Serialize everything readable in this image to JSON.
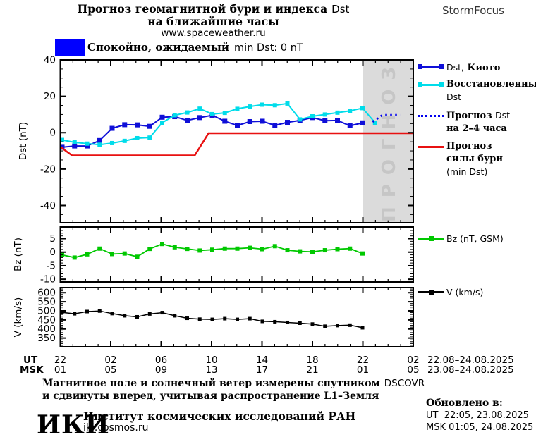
{
  "header": {
    "title_line1_ru": "Прогноз геомагнитной бури и индекса",
    "title_line1_lat": "Dst",
    "title_line2": "на ближайшие часы",
    "url": "www.spaceweather.ru",
    "brand": "StormFocus"
  },
  "status": {
    "label_ru": "Спокойно, ожидаемый",
    "label_lat": "min Dst: 0 nT",
    "box_color": "#0000ff"
  },
  "forecast_band": {
    "label": "ПРОГНОЗ",
    "fill": "#dbdbdb",
    "text_color": "#c6c6c6"
  },
  "xaxis": {
    "ut_label": "UT",
    "msk_label": "MSK",
    "ut": [
      "22",
      "02",
      "06",
      "10",
      "14",
      "18",
      "22",
      "02"
    ],
    "msk": [
      "01",
      "05",
      "09",
      "13",
      "17",
      "21",
      "01",
      "05"
    ],
    "ut_range": "22.08–24.08.2025",
    "msk_range": "23.08–24.08.2025"
  },
  "legend": {
    "dst_kyoto_lat": "Dst,",
    "dst_kyoto_ru": "Киото",
    "restored_line1": "Восстановленный",
    "restored_line2": "Dst",
    "forecast_line1_ru": "Прогноз",
    "forecast_line1_lat": "Dst",
    "forecast_line2": "на 2–4 часа",
    "storm_line1": "Прогноз",
    "storm_line2": "силы бури",
    "storm_line3": "(min Dst)",
    "bz": "Bz (nT, GSM)",
    "v": "V (km/s)"
  },
  "footer": {
    "caption_line1_ru": "Магнитное поле и солнечный ветер измерены спутником",
    "caption_line1_lat": "DSCOVR",
    "caption_line2": "и сдвинуты вперед, учитывая распространение L1–Земля",
    "logo": "ИКИ",
    "institute": "Институт космических исследований РАН",
    "site": "iki.cosmos.ru",
    "updated_label": "Обновлено в:",
    "updated_ut": "UT  22:05, 23.08.2025",
    "updated_msk": "MSK 01:05, 24.08.2025"
  },
  "chart_data": [
    {
      "type": "line",
      "panel": "dst",
      "ylabel": "Dst (nT)",
      "yticks": [
        40,
        20,
        0,
        -20,
        -40
      ],
      "ylim": [
        -50,
        40
      ],
      "x_hours_span": 28,
      "x_note": "hourly points, x axis 22:00 UT 22.08 to 02:00 UT 24.08; shaded last 4 h = forecast",
      "series": [
        {
          "name": "Dst, Киото",
          "color": "#0f0fd8",
          "width": 2,
          "marker": true,
          "msize": 7,
          "values": [
            -8,
            -7.3,
            -7.3,
            -4.3,
            2.4,
            4.4,
            4.3,
            3.5,
            8.5,
            8.8,
            6.7,
            8.3,
            9.6,
            6.3,
            4,
            6.1,
            6.3,
            4,
            5.7,
            6.7,
            8.3,
            6.6,
            6.7,
            3.8,
            5.4
          ]
        },
        {
          "name": "Восстановленный Dst",
          "color": "#00dcea",
          "width": 2,
          "marker": true,
          "msize": 6,
          "values": [
            -4,
            -5.3,
            -6,
            -6.6,
            -5.7,
            -4.5,
            -3,
            -2.7,
            5.5,
            9.6,
            11.1,
            13.2,
            10.2,
            10.9,
            13.1,
            14.4,
            15.4,
            15.1,
            16,
            7.3,
            9,
            10,
            11,
            12,
            13.5,
            5.5
          ]
        },
        {
          "name": "Прогноз Dst на 2–4 часа",
          "color": "#0000ee",
          "width": 3,
          "dash": "2.5 4.5",
          "points": [
            [
              24.8,
              6
            ],
            [
              25.6,
              9.7
            ],
            [
              27,
              9.7
            ]
          ]
        },
        {
          "name": "Прогноз силы бури (min Dst)",
          "color": "#e81111",
          "width": 2.5,
          "points": [
            [
              -0.14,
              -7.8
            ],
            [
              0.8,
              -12.5
            ],
            [
              10.6,
              -12.5
            ],
            [
              11.7,
              -0.3
            ],
            [
              28.05,
              -0.3
            ]
          ]
        }
      ]
    },
    {
      "type": "line",
      "panel": "bz",
      "ylabel": "Bz (nT)",
      "yticks": [
        5,
        0,
        -5,
        -10
      ],
      "ylim": [
        -11,
        9
      ],
      "series": [
        {
          "name": "Bz (nT, GSM)",
          "color": "#00c800",
          "width": 1.8,
          "marker": true,
          "msize": 6,
          "values": [
            -1,
            -2,
            -0.8,
            1.3,
            -0.7,
            -0.5,
            -1.7,
            1.2,
            3,
            1.8,
            1.2,
            0.6,
            0.9,
            1.3,
            1.3,
            1.6,
            1.1,
            2.2,
            0.7,
            0.3,
            0.1,
            0.7,
            1.1,
            1.3,
            -0.5
          ]
        }
      ]
    },
    {
      "type": "line",
      "panel": "v",
      "ylabel": "V (km/s)",
      "yticks": [
        600,
        550,
        500,
        450,
        400,
        350
      ],
      "ylim": [
        300,
        630
      ],
      "series": [
        {
          "name": "V (km/s)",
          "color": "#000000",
          "width": 1.5,
          "marker": true,
          "msize": 5,
          "values": [
            491,
            484,
            496,
            499,
            485,
            473,
            467,
            483,
            490,
            473,
            459,
            454,
            453,
            457,
            453,
            457,
            442,
            440,
            436,
            432,
            427,
            415,
            419,
            421,
            407
          ]
        }
      ]
    }
  ]
}
